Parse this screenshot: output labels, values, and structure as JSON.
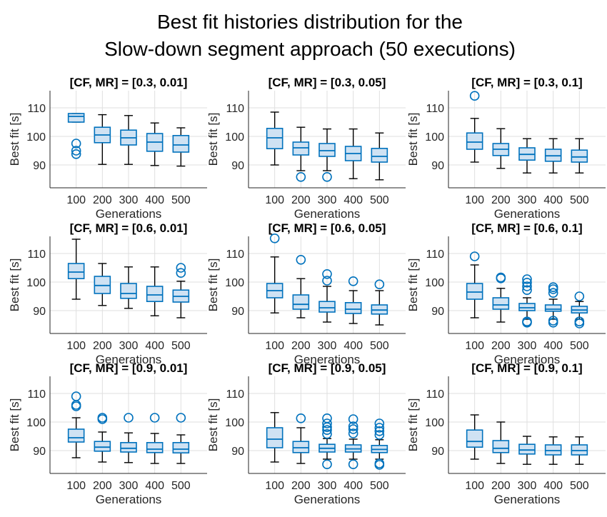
{
  "figure": {
    "title_line1": "Best fit histories distribution for the",
    "title_line2": "Slow-down segment approach (50 executions)"
  },
  "colors": {
    "box_fill": "#cfe2f3",
    "box_edge": "#0072bd",
    "median": "#0072bd",
    "whisker": "#000000",
    "outlier": "#0072bd",
    "grid": "#dfdfdf",
    "axis": "#262626"
  },
  "chart_data": [
    {
      "type": "box",
      "title": "[CF, MR] = [0.3, 0.01]",
      "xlabel": "Generations",
      "ylabel": "Best fit [s]",
      "categories": [
        "100",
        "200",
        "300",
        "400",
        "500"
      ],
      "yticks": [
        90,
        100,
        110
      ],
      "ylim": [
        82,
        116
      ],
      "grid": true,
      "boxes": [
        {
          "q1": 105,
          "median": 107,
          "q3": 108,
          "whislo": 105,
          "whishi": 108,
          "outliers": [
            97.5,
            95,
            93.8
          ]
        },
        {
          "q1": 97.8,
          "median": 100.5,
          "q3": 103.2,
          "whislo": 90.2,
          "whishi": 107.6,
          "outliers": []
        },
        {
          "q1": 97,
          "median": 99.5,
          "q3": 102.2,
          "whislo": 90.2,
          "whishi": 107.3,
          "outliers": []
        },
        {
          "q1": 94.8,
          "median": 98,
          "q3": 101,
          "whislo": 89.8,
          "whishi": 104.7,
          "outliers": []
        },
        {
          "q1": 94.5,
          "median": 97,
          "q3": 100.3,
          "whislo": 89.6,
          "whishi": 103,
          "outliers": []
        }
      ]
    },
    {
      "type": "box",
      "title": "[CF, MR] = [0.3, 0.05]",
      "xlabel": "Generations",
      "ylabel": "Best fit [s]",
      "categories": [
        "100",
        "200",
        "300",
        "400",
        "500"
      ],
      "yticks": [
        90,
        100,
        110
      ],
      "ylim": [
        82,
        116
      ],
      "grid": true,
      "boxes": [
        {
          "q1": 95.7,
          "median": 99.5,
          "q3": 102.8,
          "whislo": 90,
          "whishi": 108.5,
          "outliers": []
        },
        {
          "q1": 93.5,
          "median": 96,
          "q3": 98,
          "whislo": 88,
          "whishi": 103.2,
          "outliers": [
            85.8
          ]
        },
        {
          "q1": 93,
          "median": 95,
          "q3": 97.5,
          "whislo": 88,
          "whishi": 102.6,
          "outliers": [
            85.8
          ]
        },
        {
          "q1": 91.5,
          "median": 94,
          "q3": 96.5,
          "whislo": 85.2,
          "whishi": 102.6,
          "outliers": []
        },
        {
          "q1": 91,
          "median": 93,
          "q3": 95.8,
          "whislo": 84.8,
          "whishi": 101.2,
          "outliers": []
        }
      ]
    },
    {
      "type": "box",
      "title": "[CF, MR] = [0.3, 0.1]",
      "xlabel": "Generations",
      "ylabel": "Best fit [s]",
      "categories": [
        "100",
        "200",
        "300",
        "400",
        "500"
      ],
      "yticks": [
        90,
        100,
        110
      ],
      "ylim": [
        82,
        116
      ],
      "grid": true,
      "boxes": [
        {
          "q1": 95.5,
          "median": 98,
          "q3": 101.2,
          "whislo": 91,
          "whishi": 106.3,
          "outliers": [
            114.2
          ]
        },
        {
          "q1": 93.3,
          "median": 95.5,
          "q3": 97.5,
          "whislo": 88.8,
          "whishi": 102.7,
          "outliers": []
        },
        {
          "q1": 91.7,
          "median": 93.7,
          "q3": 96,
          "whislo": 87.2,
          "whishi": 99.2,
          "outliers": []
        },
        {
          "q1": 91.3,
          "median": 93.2,
          "q3": 95.5,
          "whislo": 87.2,
          "whishi": 99.2,
          "outliers": []
        },
        {
          "q1": 91,
          "median": 92.8,
          "q3": 95.2,
          "whislo": 87.2,
          "whishi": 99.2,
          "outliers": []
        }
      ]
    },
    {
      "type": "box",
      "title": "[CF, MR] = [0.6, 0.01]",
      "xlabel": "Generations",
      "ylabel": "Best fit [s]",
      "categories": [
        "100",
        "200",
        "300",
        "400",
        "500"
      ],
      "yticks": [
        90,
        100,
        110
      ],
      "ylim": [
        82,
        116
      ],
      "grid": true,
      "boxes": [
        {
          "q1": 101.2,
          "median": 103.5,
          "q3": 106.5,
          "whislo": 94,
          "whishi": 115,
          "outliers": []
        },
        {
          "q1": 96,
          "median": 98.8,
          "q3": 102,
          "whislo": 91.8,
          "whishi": 106.5,
          "outliers": []
        },
        {
          "q1": 94.3,
          "median": 96,
          "q3": 99.5,
          "whislo": 90.8,
          "whishi": 105.3,
          "outliers": []
        },
        {
          "q1": 93.2,
          "median": 95.5,
          "q3": 98.5,
          "whislo": 88.2,
          "whishi": 105.3,
          "outliers": []
        },
        {
          "q1": 93,
          "median": 95,
          "q3": 97.2,
          "whislo": 87.5,
          "whishi": 100.3,
          "outliers": [
            103.2,
            105
          ]
        }
      ]
    },
    {
      "type": "box",
      "title": "[CF, MR] = [0.6, 0.05]",
      "xlabel": "Generations",
      "ylabel": "Best fit [s]",
      "categories": [
        "100",
        "200",
        "300",
        "400",
        "500"
      ],
      "yticks": [
        90,
        100,
        110
      ],
      "ylim": [
        82,
        116
      ],
      "grid": true,
      "boxes": [
        {
          "q1": 94.5,
          "median": 97,
          "q3": 99.5,
          "whislo": 89.2,
          "whishi": 108.8,
          "outliers": [
            115.3
          ]
        },
        {
          "q1": 90.5,
          "median": 92.2,
          "q3": 95.5,
          "whislo": 87.5,
          "whishi": 101.2,
          "outliers": [
            107.8
          ]
        },
        {
          "q1": 89.5,
          "median": 91,
          "q3": 93.2,
          "whislo": 86,
          "whishi": 98.5,
          "outliers": [
            100.5,
            102.8
          ]
        },
        {
          "q1": 89,
          "median": 90.5,
          "q3": 92.8,
          "whislo": 85.5,
          "whishi": 97,
          "outliers": [
            100.3
          ]
        },
        {
          "q1": 88.8,
          "median": 90.2,
          "q3": 92,
          "whislo": 85,
          "whishi": 97,
          "outliers": [
            99.2
          ]
        }
      ]
    },
    {
      "type": "box",
      "title": "[CF, MR] = [0.6, 0.1]",
      "xlabel": "Generations",
      "ylabel": "Best fit [s]",
      "categories": [
        "100",
        "200",
        "300",
        "400",
        "500"
      ],
      "yticks": [
        90,
        100,
        110
      ],
      "ylim": [
        82,
        116
      ],
      "grid": true,
      "boxes": [
        {
          "q1": 94,
          "median": 96.5,
          "q3": 99.5,
          "whislo": 87.5,
          "whishi": 106,
          "outliers": [
            109
          ]
        },
        {
          "q1": 90.5,
          "median": 92,
          "q3": 94.5,
          "whislo": 86,
          "whishi": 97.8,
          "outliers": [
            101.3,
            101.6
          ]
        },
        {
          "q1": 90,
          "median": 91,
          "q3": 92.5,
          "whislo": 87,
          "whishi": 94.5,
          "outliers": [
            85.8,
            86.2,
            97.2,
            98.5,
            99.8,
            101
          ]
        },
        {
          "q1": 89.8,
          "median": 90.5,
          "q3": 92,
          "whislo": 87,
          "whishi": 94,
          "outliers": [
            85.8,
            86.5,
            96.2,
            97.5,
            98.2
          ]
        },
        {
          "q1": 89.2,
          "median": 90.2,
          "q3": 91.5,
          "whislo": 87,
          "whishi": 93.2,
          "outliers": [
            85.5,
            86.2,
            95
          ]
        }
      ]
    },
    {
      "type": "box",
      "title": "[CF, MR] = [0.9, 0.01]",
      "xlabel": "Generations",
      "ylabel": "Best fit [s]",
      "categories": [
        "100",
        "200",
        "300",
        "400",
        "500"
      ],
      "yticks": [
        90,
        100,
        110
      ],
      "ylim": [
        82,
        116
      ],
      "grid": true,
      "boxes": [
        {
          "q1": 93,
          "median": 94.5,
          "q3": 97.5,
          "whislo": 87.5,
          "whishi": 101.5,
          "outliers": [
            105.5,
            106,
            109
          ]
        },
        {
          "q1": 89.8,
          "median": 91.2,
          "q3": 93.2,
          "whislo": 86,
          "whishi": 96.5,
          "outliers": [
            101,
            101.5
          ]
        },
        {
          "q1": 89.5,
          "median": 90.8,
          "q3": 92.8,
          "whislo": 85.8,
          "whishi": 96.2,
          "outliers": [
            101.5
          ]
        },
        {
          "q1": 89.3,
          "median": 90.5,
          "q3": 92.8,
          "whislo": 85.5,
          "whishi": 96,
          "outliers": [
            101.5
          ]
        },
        {
          "q1": 89.2,
          "median": 90.5,
          "q3": 92.8,
          "whislo": 85.5,
          "whishi": 95.5,
          "outliers": [
            101.5
          ]
        }
      ]
    },
    {
      "type": "box",
      "title": "[CF, MR] = [0.9, 0.05]",
      "xlabel": "Generations",
      "ylabel": "Best fit [s]",
      "categories": [
        "100",
        "200",
        "300",
        "400",
        "500"
      ],
      "yticks": [
        90,
        100,
        110
      ],
      "ylim": [
        82,
        116
      ],
      "grid": true,
      "boxes": [
        {
          "q1": 91,
          "median": 94,
          "q3": 98,
          "whislo": 86,
          "whishi": 103.3,
          "outliers": []
        },
        {
          "q1": 89.3,
          "median": 91,
          "q3": 93.2,
          "whislo": 85.5,
          "whishi": 98,
          "outliers": [
            101.3
          ]
        },
        {
          "q1": 89.5,
          "median": 90.8,
          "q3": 92.2,
          "whislo": 87,
          "whishi": 94.2,
          "outliers": [
            85.2,
            95.8,
            97.2,
            98.2,
            99.5,
            101.3
          ]
        },
        {
          "q1": 89.5,
          "median": 90.6,
          "q3": 92,
          "whislo": 87,
          "whishi": 94,
          "outliers": [
            85.2,
            96,
            97.5,
            98.5,
            101
          ]
        },
        {
          "q1": 89.3,
          "median": 90.4,
          "q3": 91.8,
          "whislo": 87,
          "whishi": 93.8,
          "outliers": [
            85,
            85.5,
            95.5,
            96.8,
            98,
            99.5
          ]
        }
      ]
    },
    {
      "type": "box",
      "title": "[CF, MR] = [0.9, 0.1]",
      "xlabel": "Generations",
      "ylabel": "Best fit [s]",
      "categories": [
        "100",
        "200",
        "300",
        "400",
        "500"
      ],
      "yticks": [
        90,
        100,
        110
      ],
      "ylim": [
        82,
        116
      ],
      "grid": true,
      "boxes": [
        {
          "q1": 91.2,
          "median": 93.2,
          "q3": 97.2,
          "whislo": 87,
          "whishi": 102.5,
          "outliers": []
        },
        {
          "q1": 89.3,
          "median": 90.8,
          "q3": 93.5,
          "whislo": 85.5,
          "whishi": 100,
          "outliers": []
        },
        {
          "q1": 88.8,
          "median": 90.2,
          "q3": 92.2,
          "whislo": 85.2,
          "whishi": 95,
          "outliers": []
        },
        {
          "q1": 88.5,
          "median": 90,
          "q3": 92,
          "whislo": 85.2,
          "whishi": 94.8,
          "outliers": []
        },
        {
          "q1": 88.5,
          "median": 90,
          "q3": 92,
          "whislo": 85.2,
          "whishi": 94.8,
          "outliers": []
        }
      ]
    }
  ]
}
